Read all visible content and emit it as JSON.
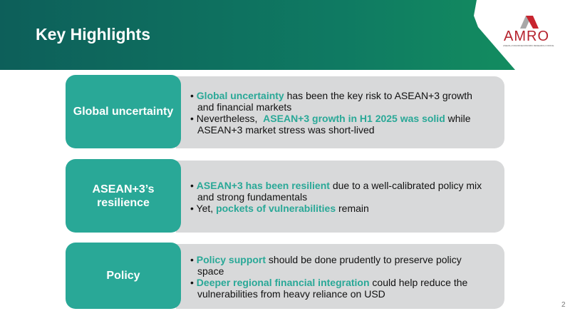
{
  "header": {
    "title": "Key Highlights"
  },
  "logo": {
    "name": "AMRO",
    "subtitle": "ASEAN+3 MACROECONOMIC RESEARCH OFFICE",
    "colors": {
      "red": "#b5222d",
      "grey": "#9a9a9a"
    }
  },
  "colors": {
    "accent": "#29a897",
    "header_dark": "#0d5f5a",
    "header_light": "#14925f",
    "panel": "#d8d9da"
  },
  "cards": [
    {
      "label": "Global uncertainty",
      "bullets": [
        [
          {
            "t": "Global uncertainty",
            "h": true
          },
          {
            "t": " has been the key risk to ASEAN+3 growth and financial markets"
          }
        ],
        [
          {
            "t": "Nevertheless,  "
          },
          {
            "t": "ASEAN+3 growth in H1 2025 was solid",
            "h": true
          },
          {
            "t": " while ASEAN+3 market stress was short-lived"
          }
        ]
      ]
    },
    {
      "label": "ASEAN+3’s resilience",
      "bullets": [
        [
          {
            "t": "ASEAN+3 has been resilient",
            "h": true
          },
          {
            "t": " due to a well-calibrated policy mix and strong fundamentals"
          }
        ],
        [
          {
            "t": "Yet, "
          },
          {
            "t": "pockets of vulnerabilities",
            "h": true
          },
          {
            "t": " remain"
          }
        ]
      ]
    },
    {
      "label": "Policy",
      "bullets": [
        [
          {
            "t": "Policy support",
            "h": true
          },
          {
            "t": " should be done prudently to preserve policy space"
          }
        ],
        [
          {
            "t": "Deeper regional financial integration",
            "h": true
          },
          {
            "t": " could help reduce the vulnerabilities from heavy reliance on USD"
          }
        ]
      ]
    }
  ],
  "page_number": "2"
}
